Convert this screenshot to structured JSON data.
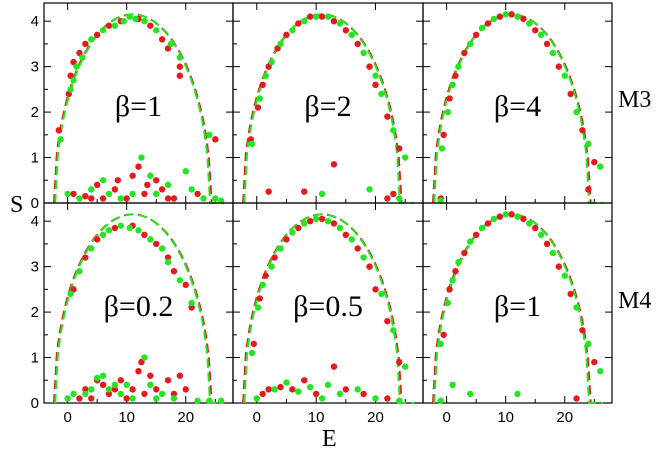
{
  "figure": {
    "xlabel": "E",
    "ylabel": "S",
    "row_labels": [
      "M3",
      "M4"
    ]
  },
  "colors": {
    "red": "#e41a1c",
    "green": "#22e622"
  },
  "chart_data": {
    "type": "scatter",
    "layout": "2x3 grid",
    "xlim": [
      -4,
      28
    ],
    "ylim": [
      0,
      4.4
    ],
    "xticks": [
      0,
      10,
      20
    ],
    "yticks": [
      0,
      1,
      2,
      3,
      4
    ],
    "grid": false,
    "curve_peak": {
      "x": 11,
      "y": 4.15
    },
    "panels": [
      {
        "label": "β=1",
        "row": "M3",
        "red": [
          [
            -1.5,
            1.6
          ],
          [
            0.2,
            2.4
          ],
          [
            0.5,
            2.8
          ],
          [
            1,
            3.1
          ],
          [
            2,
            3.3
          ],
          [
            3,
            3.5
          ],
          [
            5,
            3.7
          ],
          [
            7,
            3.9
          ],
          [
            9,
            4.0
          ],
          [
            12,
            4.05
          ],
          [
            14,
            3.9
          ],
          [
            16,
            3.6
          ],
          [
            17,
            3.4
          ],
          [
            19,
            3.0
          ],
          [
            19,
            2.8
          ],
          [
            25,
            1.4
          ],
          [
            5,
            0.4
          ],
          [
            6,
            0.1
          ],
          [
            8,
            0.3
          ],
          [
            8.5,
            0.5
          ],
          [
            10,
            0.1
          ],
          [
            11,
            0.6
          ],
          [
            12,
            0.8
          ],
          [
            13,
            0.2
          ],
          [
            13.5,
            0.4
          ],
          [
            15,
            0.5
          ],
          [
            16,
            0.3
          ],
          [
            17,
            0.1
          ],
          [
            18,
            0.1
          ],
          [
            22,
            0.2
          ],
          [
            1,
            0.2
          ],
          [
            3,
            0.15
          ],
          [
            4,
            0.1
          ]
        ],
        "green": [
          [
            -1.2,
            1.4
          ],
          [
            0.5,
            2.5
          ],
          [
            1,
            2.7
          ],
          [
            1.5,
            3.0
          ],
          [
            2.5,
            3.2
          ],
          [
            4,
            3.6
          ],
          [
            6,
            3.8
          ],
          [
            8,
            3.9
          ],
          [
            9.5,
            4.0
          ],
          [
            10.5,
            4.1
          ],
          [
            11.5,
            4.05
          ],
          [
            13,
            4.0
          ],
          [
            15,
            3.8
          ],
          [
            17.5,
            3.5
          ],
          [
            19,
            3.2
          ],
          [
            24,
            1.5
          ],
          [
            0,
            0.2
          ],
          [
            2,
            0.1
          ],
          [
            4,
            0.3
          ],
          [
            6,
            0.5
          ],
          [
            7,
            0.2
          ],
          [
            9,
            0.1
          ],
          [
            11,
            0.2
          ],
          [
            12.5,
            1.0
          ],
          [
            14,
            0.6
          ],
          [
            15,
            0.2
          ],
          [
            17,
            0.4
          ],
          [
            20,
            0.7
          ],
          [
            21,
            0.3
          ],
          [
            23,
            0.1
          ],
          [
            25,
            0.1
          ],
          [
            26,
            0.05
          ]
        ]
      },
      {
        "label": "β=2",
        "row": "M3",
        "red": [
          [
            -1,
            1.4
          ],
          [
            0.2,
            2.1
          ],
          [
            1,
            2.6
          ],
          [
            2,
            3.0
          ],
          [
            3.5,
            3.4
          ],
          [
            5,
            3.7
          ],
          [
            7,
            3.95
          ],
          [
            9,
            4.1
          ],
          [
            11,
            4.1
          ],
          [
            13,
            4.0
          ],
          [
            15,
            3.8
          ],
          [
            17,
            3.5
          ],
          [
            19,
            3.0
          ],
          [
            20,
            2.6
          ],
          [
            22,
            1.9
          ],
          [
            24,
            1.2
          ],
          [
            2,
            0.25
          ],
          [
            8,
            0.25
          ],
          [
            13,
            0.85
          ],
          [
            22,
            0.1
          ],
          [
            23,
            0.2
          ]
        ],
        "green": [
          [
            -0.8,
            1.3
          ],
          [
            0.5,
            2.3
          ],
          [
            1.5,
            2.8
          ],
          [
            2.5,
            3.1
          ],
          [
            4,
            3.5
          ],
          [
            6,
            3.8
          ],
          [
            8,
            4.0
          ],
          [
            10,
            4.1
          ],
          [
            12,
            4.1
          ],
          [
            14,
            3.95
          ],
          [
            16,
            3.7
          ],
          [
            18,
            3.3
          ],
          [
            20,
            2.8
          ],
          [
            21,
            2.4
          ],
          [
            23,
            1.6
          ],
          [
            25,
            1.0
          ],
          [
            11,
            0.2
          ],
          [
            19,
            0.3
          ],
          [
            24,
            0.1
          ]
        ]
      },
      {
        "label": "β=4",
        "row": "M3",
        "red": [
          [
            -0.5,
            1.5
          ],
          [
            0.5,
            2.3
          ],
          [
            1.5,
            2.8
          ],
          [
            3,
            3.3
          ],
          [
            5,
            3.7
          ],
          [
            7,
            3.95
          ],
          [
            9,
            4.1
          ],
          [
            11,
            4.15
          ],
          [
            13,
            4.05
          ],
          [
            15,
            3.8
          ],
          [
            17,
            3.5
          ],
          [
            19,
            3.0
          ],
          [
            21,
            2.4
          ],
          [
            23,
            1.6
          ],
          [
            24,
            0.3
          ],
          [
            25,
            0.9
          ],
          [
            -1,
            0.1
          ]
        ],
        "green": [
          [
            -0.8,
            1.2
          ],
          [
            0.2,
            2.0
          ],
          [
            1,
            2.6
          ],
          [
            2,
            3.0
          ],
          [
            4,
            3.5
          ],
          [
            6,
            3.85
          ],
          [
            8,
            4.05
          ],
          [
            10,
            4.15
          ],
          [
            12,
            4.1
          ],
          [
            14,
            3.95
          ],
          [
            16,
            3.7
          ],
          [
            18,
            3.3
          ],
          [
            20,
            2.8
          ],
          [
            22,
            2.0
          ],
          [
            24,
            1.3
          ],
          [
            26,
            0.8
          ],
          [
            -1,
            0.05
          ]
        ]
      },
      {
        "label": "β=0.2",
        "row": "M4",
        "red": [
          [
            1,
            2.5
          ],
          [
            3,
            3.2
          ],
          [
            5,
            3.6
          ],
          [
            8,
            3.85
          ],
          [
            11,
            3.9
          ],
          [
            13,
            3.7
          ],
          [
            15,
            3.5
          ],
          [
            17,
            3.2
          ],
          [
            18,
            2.9
          ],
          [
            20,
            2.6
          ],
          [
            21,
            2.1
          ],
          [
            3,
            0.3
          ],
          [
            5,
            0.5
          ],
          [
            6,
            0.4
          ],
          [
            7,
            0.2
          ],
          [
            8,
            0.3
          ],
          [
            9,
            0.5
          ],
          [
            10,
            0.1
          ],
          [
            11,
            0.3
          ],
          [
            12,
            0.7
          ],
          [
            12.5,
            0.9
          ],
          [
            13,
            0.2
          ],
          [
            14,
            0.6
          ],
          [
            15,
            0.3
          ],
          [
            17,
            0.5
          ],
          [
            18,
            0.2
          ],
          [
            19,
            0.6
          ],
          [
            20,
            0.3
          ],
          [
            2,
            0.1
          ],
          [
            4,
            0.1
          ]
        ],
        "green": [
          [
            0.5,
            2.4
          ],
          [
            2,
            2.9
          ],
          [
            4,
            3.4
          ],
          [
            6,
            3.7
          ],
          [
            7,
            3.8
          ],
          [
            9,
            3.9
          ],
          [
            10.5,
            3.85
          ],
          [
            12,
            3.8
          ],
          [
            14,
            3.6
          ],
          [
            16,
            3.4
          ],
          [
            17,
            3.1
          ],
          [
            19,
            2.7
          ],
          [
            21,
            2.2
          ],
          [
            0,
            0.1
          ],
          [
            1,
            0.2
          ],
          [
            3,
            0.2
          ],
          [
            4,
            0.3
          ],
          [
            5,
            0.55
          ],
          [
            6,
            0.6
          ],
          [
            7,
            0.3
          ],
          [
            8,
            0.4
          ],
          [
            9,
            0.2
          ],
          [
            10,
            0.4
          ],
          [
            11,
            0.1
          ],
          [
            13,
            1.0
          ],
          [
            14,
            0.4
          ],
          [
            15,
            0.1
          ],
          [
            16,
            0.2
          ],
          [
            18,
            0.1
          ],
          [
            22,
            0.05
          ],
          [
            24,
            0.05
          ],
          [
            26,
            0.05
          ]
        ]
      },
      {
        "label": "β=0.5",
        "row": "M4",
        "red": [
          [
            -0.5,
            1.3
          ],
          [
            0.5,
            2.3
          ],
          [
            1.5,
            2.8
          ],
          [
            3,
            3.2
          ],
          [
            5,
            3.6
          ],
          [
            7,
            3.85
          ],
          [
            9,
            4.0
          ],
          [
            11,
            4.05
          ],
          [
            13,
            3.95
          ],
          [
            15,
            3.7
          ],
          [
            17,
            3.4
          ],
          [
            19,
            3.0
          ],
          [
            20,
            2.5
          ],
          [
            22,
            1.8
          ],
          [
            24,
            0.9
          ],
          [
            1,
            0.2
          ],
          [
            2,
            0.3
          ],
          [
            4,
            0.35
          ],
          [
            6,
            0.3
          ],
          [
            8,
            0.5
          ],
          [
            10,
            0.2
          ],
          [
            13,
            0.8
          ],
          [
            15,
            0.3
          ],
          [
            18,
            0.2
          ],
          [
            22,
            0.1
          ]
        ],
        "green": [
          [
            -0.8,
            1.1
          ],
          [
            0.2,
            2.1
          ],
          [
            1,
            2.6
          ],
          [
            2.5,
            3.0
          ],
          [
            4,
            3.4
          ],
          [
            6,
            3.75
          ],
          [
            8,
            3.95
          ],
          [
            10,
            4.05
          ],
          [
            12,
            4.0
          ],
          [
            14,
            3.85
          ],
          [
            16,
            3.6
          ],
          [
            18,
            3.2
          ],
          [
            21,
            2.4
          ],
          [
            23,
            1.6
          ],
          [
            25,
            0.8
          ],
          [
            0,
            0.1
          ],
          [
            3,
            0.3
          ],
          [
            5,
            0.45
          ],
          [
            7,
            0.25
          ],
          [
            9,
            0.35
          ],
          [
            11,
            0.1
          ],
          [
            12,
            0.4
          ],
          [
            14,
            0.2
          ],
          [
            17,
            0.3
          ],
          [
            20,
            0.1
          ],
          [
            24,
            0.05
          ]
        ]
      },
      {
        "label": "β=1",
        "row": "M4",
        "red": [
          [
            -0.5,
            1.5
          ],
          [
            0.5,
            2.5
          ],
          [
            1.5,
            2.9
          ],
          [
            3,
            3.3
          ],
          [
            5,
            3.7
          ],
          [
            7,
            3.95
          ],
          [
            9,
            4.1
          ],
          [
            11,
            4.15
          ],
          [
            13,
            4.05
          ],
          [
            15,
            3.85
          ],
          [
            17,
            3.5
          ],
          [
            19,
            3.0
          ],
          [
            21,
            2.4
          ],
          [
            23,
            1.6
          ],
          [
            25,
            0.9
          ],
          [
            22,
            0.1
          ]
        ],
        "green": [
          [
            -1,
            1.3
          ],
          [
            0.2,
            2.2
          ],
          [
            1,
            2.7
          ],
          [
            2,
            3.1
          ],
          [
            4,
            3.55
          ],
          [
            6,
            3.85
          ],
          [
            8,
            4.05
          ],
          [
            10,
            4.15
          ],
          [
            12,
            4.1
          ],
          [
            14,
            3.95
          ],
          [
            16,
            3.7
          ],
          [
            18,
            3.3
          ],
          [
            20,
            2.8
          ],
          [
            22,
            2.1
          ],
          [
            24,
            1.3
          ],
          [
            26,
            0.7
          ],
          [
            1,
            0.4
          ],
          [
            4,
            0.2
          ],
          [
            12,
            0.2
          ],
          [
            -1,
            0.05
          ]
        ]
      }
    ]
  }
}
